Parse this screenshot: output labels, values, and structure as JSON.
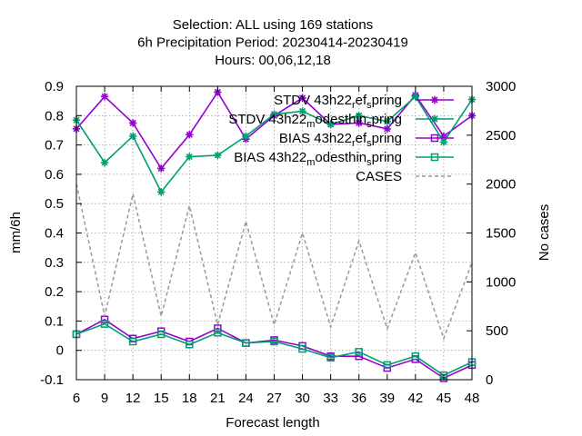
{
  "chart_data": {
    "type": "line",
    "title": [
      "Selection: ALL using   169 stations",
      "6h Precipitation   Period: 20230414-20230419",
      "Hours:  00,06,12,18"
    ],
    "xlabel": "Forecast length",
    "ylabel": "mm/6h",
    "y2label": "No cases",
    "x": [
      6,
      9,
      12,
      15,
      18,
      21,
      24,
      27,
      30,
      33,
      36,
      39,
      42,
      45,
      48
    ],
    "xlim": [
      6,
      48
    ],
    "ylim": [
      -0.1,
      0.9
    ],
    "y2lim": [
      0,
      3000
    ],
    "yticks": [
      "-0.1",
      "0",
      "0.1",
      "0.2",
      "0.3",
      "0.4",
      "0.5",
      "0.6",
      "0.7",
      "0.8",
      "0.9"
    ],
    "y2ticks": [
      "0",
      "500",
      "1000",
      "1500",
      "2000",
      "2500",
      "3000"
    ],
    "grid": true,
    "legend_position": "top-right",
    "series": [
      {
        "name": "STDV 43h22_ref_spring",
        "axis": "y",
        "color": "#9400d3",
        "marker": "star",
        "dash": false,
        "values": [
          0.755,
          0.865,
          0.775,
          0.62,
          0.735,
          0.88,
          0.72,
          0.8,
          0.86,
          0.77,
          0.775,
          0.755,
          0.87,
          0.73,
          0.8
        ]
      },
      {
        "name": "STDV 43h22_modesthin_spring",
        "axis": "y",
        "color": "#009e73",
        "marker": "star",
        "dash": false,
        "values": [
          0.785,
          0.64,
          0.73,
          0.54,
          0.66,
          0.665,
          0.73,
          0.805,
          0.815,
          0.77,
          0.8,
          0.78,
          0.865,
          0.71,
          0.855
        ]
      },
      {
        "name": "BIAS 43h22_ref_spring",
        "axis": "y",
        "color": "#9400d3",
        "marker": "square",
        "dash": false,
        "values": [
          0.055,
          0.105,
          0.04,
          0.065,
          0.03,
          0.075,
          0.025,
          0.035,
          0.015,
          -0.02,
          -0.02,
          -0.06,
          -0.03,
          -0.095,
          -0.05
        ]
      },
      {
        "name": "BIAS 43h22_modesthin_spring",
        "axis": "y",
        "color": "#009e73",
        "marker": "square",
        "dash": false,
        "values": [
          0.055,
          0.09,
          0.03,
          0.055,
          0.02,
          0.06,
          0.025,
          0.03,
          0.005,
          -0.025,
          -0.005,
          -0.05,
          -0.02,
          -0.085,
          -0.04
        ]
      },
      {
        "name": "CASES",
        "axis": "y2",
        "color": "#999999",
        "marker": "none",
        "dash": true,
        "values": [
          2000,
          650,
          1900,
          650,
          1780,
          560,
          1620,
          560,
          1500,
          540,
          1420,
          520,
          1300,
          420,
          1200
        ]
      }
    ],
    "legend": [
      {
        "label": "STDV 43h22",
        "sub": "r",
        "mid": "ef",
        "sub2": "s",
        "end": "pring"
      },
      {
        "label": "STDV 43h22",
        "sub": "m",
        "mid": "odesthin",
        "sub2": "s",
        "end": "pring"
      },
      {
        "label": "BIAS 43h22",
        "sub": "r",
        "mid": "ef",
        "sub2": "s",
        "end": "pring"
      },
      {
        "label": "BIAS 43h22",
        "sub": "m",
        "mid": "odesthin",
        "sub2": "s",
        "end": "pring"
      },
      {
        "label": "CASES",
        "sub": "",
        "mid": "",
        "sub2": "",
        "end": ""
      }
    ]
  }
}
